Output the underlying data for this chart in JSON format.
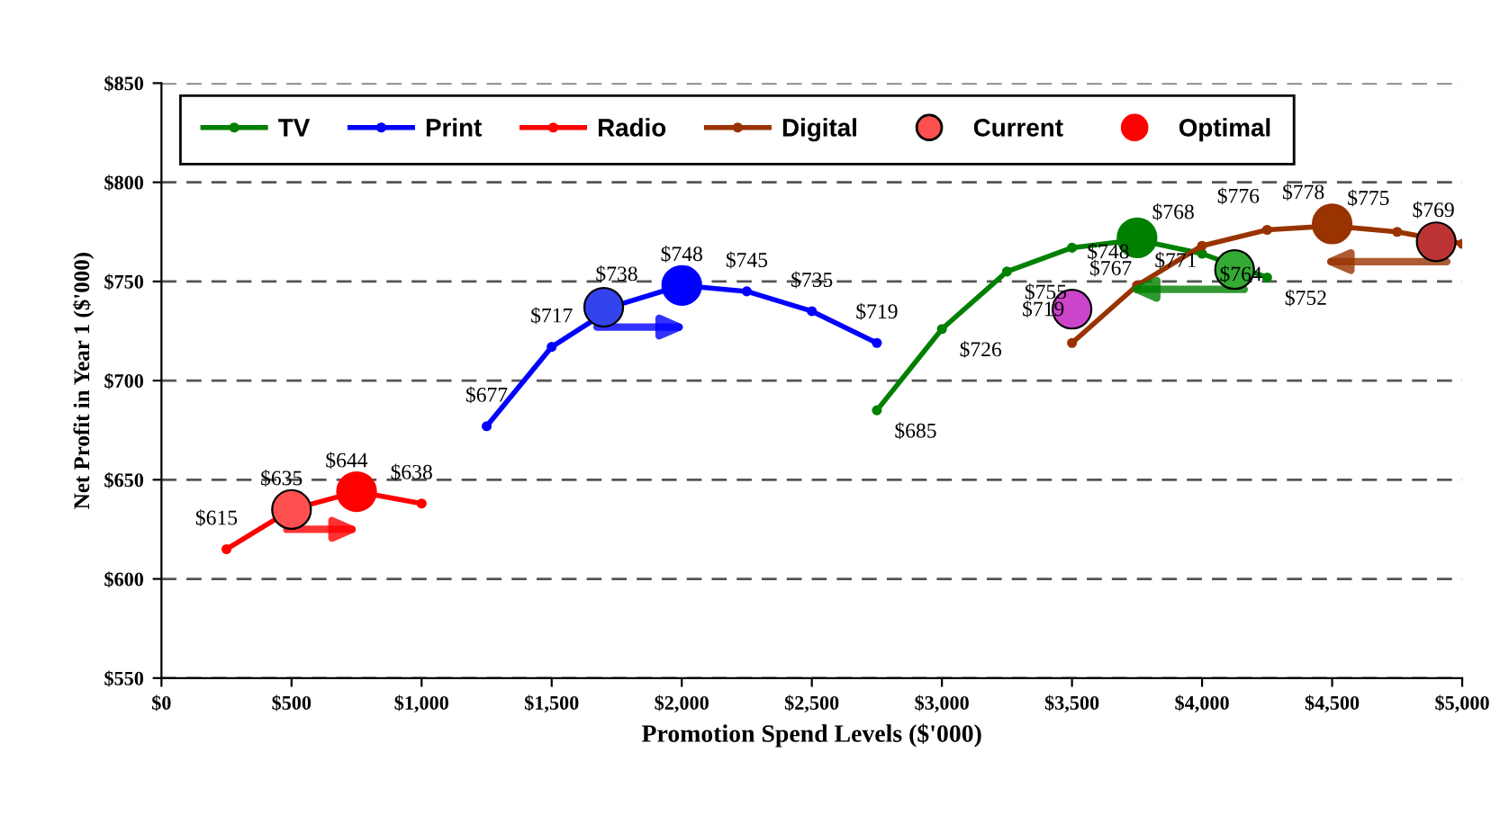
{
  "chart_data": {
    "type": "line",
    "xlabel": "Promotion Spend Levels ($'000)",
    "ylabel": "Net Profit in Year 1 ($'000)",
    "xlim": [
      0,
      5000
    ],
    "ylim": [
      550,
      850
    ],
    "xticks": [
      {
        "value": 0,
        "label": "$0"
      },
      {
        "value": 500,
        "label": "$500"
      },
      {
        "value": 1000,
        "label": "$1,000"
      },
      {
        "value": 1500,
        "label": "$1,500"
      },
      {
        "value": 2000,
        "label": "$2,000"
      },
      {
        "value": 2500,
        "label": "$2,500"
      },
      {
        "value": 3000,
        "label": "$3,000"
      },
      {
        "value": 3500,
        "label": "$3,500"
      },
      {
        "value": 4000,
        "label": "$4,000"
      },
      {
        "value": 4500,
        "label": "$4,500"
      },
      {
        "value": 5000,
        "label": "$5,000"
      }
    ],
    "yticks": [
      {
        "value": 550,
        "label": "$550"
      },
      {
        "value": 600,
        "label": "$600"
      },
      {
        "value": 650,
        "label": "$650"
      },
      {
        "value": 700,
        "label": "$700"
      },
      {
        "value": 750,
        "label": "$750"
      },
      {
        "value": 800,
        "label": "$800"
      },
      {
        "value": 850,
        "label": "$850"
      }
    ],
    "grid": "y",
    "legend": "top left",
    "marker": "circle",
    "line_style": "solid",
    "series": [
      {
        "name": "TV",
        "color": "#008000",
        "x": [
          2750,
          3000,
          3250,
          3500,
          3750,
          4000,
          4250
        ],
        "values": [
          685,
          726,
          755,
          767,
          771,
          764,
          752
        ],
        "value_labels": [
          "$685",
          "$726",
          "$755",
          "$767",
          "$771",
          "$764",
          "$752"
        ]
      },
      {
        "name": "Print",
        "color": "#0000ff",
        "x": [
          1250,
          1500,
          1750,
          2000,
          2250,
          2500,
          2750
        ],
        "values": [
          677,
          717,
          738,
          748,
          745,
          735,
          719
        ],
        "value_labels": [
          "$677",
          "$717",
          "$738",
          "$748",
          "$745",
          "$735",
          "$719"
        ]
      },
      {
        "name": "Radio",
        "color": "#ff0000",
        "x": [
          250,
          500,
          750,
          1000
        ],
        "values": [
          615,
          635,
          644,
          638
        ],
        "value_labels": [
          "$615",
          "$635",
          "$644",
          "$638"
        ]
      },
      {
        "name": "Digital",
        "color": "#993300",
        "x": [
          3500,
          3750,
          4000,
          4250,
          4500,
          4750,
          5000
        ],
        "values": [
          719,
          748,
          768,
          776,
          778,
          775,
          769
        ],
        "value_labels": [
          "$719",
          "$748",
          "$768",
          "$776",
          "$778",
          "$775",
          "$769"
        ]
      },
      {
        "name": "Current",
        "type": "scatter",
        "x": [
          500,
          1700,
          4125,
          4900,
          3500
        ],
        "values": [
          635,
          737,
          756,
          770,
          736
        ],
        "colors": [
          "#ff5050",
          "#3344ee",
          "#33aa33",
          "#bb3333",
          "#cc44cc"
        ]
      },
      {
        "name": "Optimal",
        "type": "scatter",
        "x": [
          750,
          2000,
          3750,
          4500
        ],
        "values": [
          644,
          748,
          772,
          779
        ],
        "colors": [
          "#ff0000",
          "#0000ff",
          "#008000",
          "#993300"
        ]
      }
    ]
  }
}
